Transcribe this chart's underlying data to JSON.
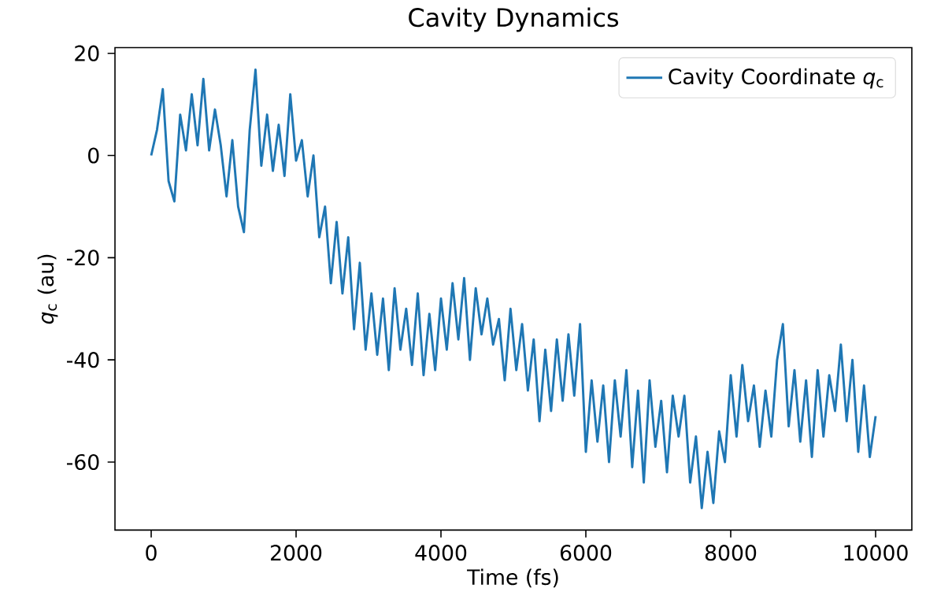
{
  "chart_data": {
    "type": "line",
    "title": "Cavity Dynamics",
    "xlabel": "Time (fs)",
    "ylabel": "*q*$_{c}$ (au)",
    "x": [
      0,
      80,
      160,
      240,
      320,
      400,
      480,
      560,
      640,
      720,
      800,
      880,
      960,
      1040,
      1120,
      1200,
      1280,
      1360,
      1440,
      1520,
      1600,
      1680,
      1760,
      1840,
      1920,
      2000,
      2080,
      2160,
      2240,
      2320,
      2400,
      2480,
      2560,
      2640,
      2720,
      2800,
      2880,
      2960,
      3040,
      3120,
      3200,
      3280,
      3360,
      3440,
      3520,
      3600,
      3680,
      3760,
      3840,
      3920,
      4000,
      4080,
      4160,
      4240,
      4320,
      4400,
      4480,
      4560,
      4640,
      4720,
      4800,
      4880,
      4960,
      5040,
      5120,
      5200,
      5280,
      5360,
      5440,
      5520,
      5600,
      5680,
      5760,
      5840,
      5920,
      6000,
      6080,
      6160,
      6240,
      6320,
      6400,
      6480,
      6560,
      6640,
      6720,
      6800,
      6880,
      6960,
      7040,
      7120,
      7200,
      7280,
      7360,
      7440,
      7520,
      7600,
      7680,
      7760,
      7840,
      7920,
      8000,
      8080,
      8160,
      8240,
      8320,
      8400,
      8480,
      8560,
      8640,
      8720,
      8800,
      8880,
      8960,
      9040,
      9120,
      9200,
      9280,
      9360,
      9440,
      9520,
      9600,
      9680,
      9760,
      9840,
      9920,
      10000
    ],
    "series": [
      {
        "name": "Cavity Coordinate *q*$_{c}$",
        "color": "#1f77b4",
        "values": [
          0,
          5,
          13,
          -5,
          -9,
          8,
          1,
          12,
          2,
          15,
          1,
          9,
          2,
          -8,
          3,
          -10,
          -15,
          5,
          16.8,
          -2,
          8,
          -3,
          6,
          -4,
          12,
          -1,
          3,
          -8,
          0,
          -16,
          -10,
          -25,
          -13,
          -27,
          -16,
          -34,
          -21,
          -38,
          -27,
          -39,
          -28,
          -42,
          -26,
          -38,
          -30,
          -41,
          -27,
          -43,
          -31,
          -42,
          -28,
          -38,
          -25,
          -36,
          -24,
          -40,
          -26,
          -35,
          -28,
          -37,
          -32,
          -44,
          -30,
          -42,
          -33,
          -46,
          -36,
          -52,
          -38,
          -50,
          -36,
          -48,
          -35,
          -47,
          -33,
          -58,
          -44,
          -56,
          -45,
          -60,
          -44,
          -55,
          -42,
          -61,
          -46,
          -64,
          -44,
          -57,
          -48,
          -62,
          -47,
          -55,
          -47,
          -64,
          -55,
          -69,
          -58,
          -68,
          -54,
          -60,
          -43,
          -55,
          -41,
          -52,
          -45,
          -57,
          -46,
          -55,
          -40,
          -33,
          -53,
          -42,
          -56,
          -44,
          -59,
          -42,
          -55,
          -43,
          -50,
          -37,
          -52,
          -40,
          -58,
          -45,
          -59,
          -51
        ]
      }
    ],
    "xlim": [
      -500,
      10500
    ],
    "ylim": [
      -73.3,
      21.1
    ],
    "xticks": [
      0,
      2000,
      4000,
      6000,
      8000,
      10000
    ],
    "yticks": [
      -60,
      -40,
      -20,
      0,
      20
    ],
    "legend": "top right"
  }
}
